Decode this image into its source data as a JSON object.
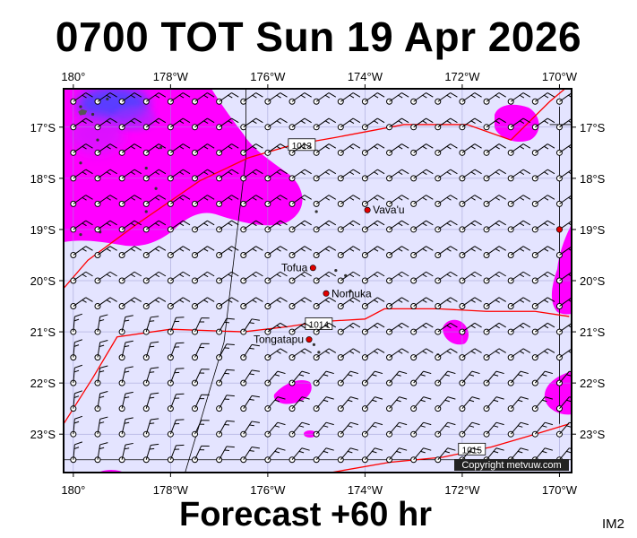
{
  "title": "0700 TOT Sun 19 Apr 2026",
  "subtitle": "Forecast +60 hr",
  "image_tag": "IM2",
  "copyright": "Copyright metvuw.com",
  "lon_labels": [
    "180°",
    "178°W",
    "176°W",
    "174°W",
    "172°W",
    "170°W"
  ],
  "lat_labels": [
    "17°S",
    "18°S",
    "19°S",
    "20°S",
    "21°S",
    "22°S",
    "23°S"
  ],
  "places": [
    {
      "name": "Vava'u",
      "lon": -173.95,
      "lat": -18.62
    },
    {
      "name": "Tofua",
      "lon": -175.07,
      "lat": -19.75
    },
    {
      "name": "Nomuka",
      "lon": -174.8,
      "lat": -20.25
    },
    {
      "name": "Tongatapu",
      "lon": -175.15,
      "lat": -21.15
    }
  ],
  "isobars": [
    {
      "label": "1013",
      "points": [
        [
          -180.2,
          -20.15
        ],
        [
          -179.7,
          -19.6
        ],
        [
          -178.7,
          -18.9
        ],
        [
          -177.4,
          -18.05
        ],
        [
          -176.4,
          -17.6
        ],
        [
          -175.5,
          -17.35
        ],
        [
          -174.6,
          -17.2
        ],
        [
          -173.2,
          -16.95
        ],
        [
          -171.9,
          -16.95
        ],
        [
          -171.0,
          -17.25
        ],
        [
          -170.2,
          -16.5
        ],
        [
          -169.7,
          -16.1
        ]
      ],
      "label_at": [
        -175.3,
        -17.35
      ]
    },
    {
      "label": "1014",
      "points": [
        [
          -180.2,
          -22.8
        ],
        [
          -179.6,
          -21.9
        ],
        [
          -179.1,
          -21.1
        ],
        [
          -178.0,
          -20.95
        ],
        [
          -176.5,
          -21.0
        ],
        [
          -175.6,
          -20.9
        ],
        [
          -174.9,
          -20.8
        ],
        [
          -174.0,
          -20.75
        ],
        [
          -173.6,
          -20.55
        ],
        [
          -172.5,
          -20.55
        ],
        [
          -171.5,
          -20.6
        ],
        [
          -170.5,
          -20.6
        ],
        [
          -169.8,
          -20.7
        ]
      ],
      "label_at": [
        -174.95,
        -20.85
      ]
    },
    {
      "label": "1015",
      "points": [
        [
          -176.8,
          -23.75
        ],
        [
          -176.0,
          -23.85
        ],
        [
          -174.7,
          -23.75
        ],
        [
          -173.5,
          -23.55
        ],
        [
          -172.4,
          -23.45
        ],
        [
          -171.4,
          -23.25
        ],
        [
          -170.5,
          -23.0
        ],
        [
          -169.8,
          -22.8
        ]
      ],
      "label_at": [
        -171.8,
        -23.3
      ]
    }
  ],
  "colors": {
    "ocean": "#e4e4ff",
    "rain_light": "#ff00ff",
    "rain_heavy": "#5a3cff",
    "isobar": "#ff0000",
    "place_marker": "#e00000"
  }
}
